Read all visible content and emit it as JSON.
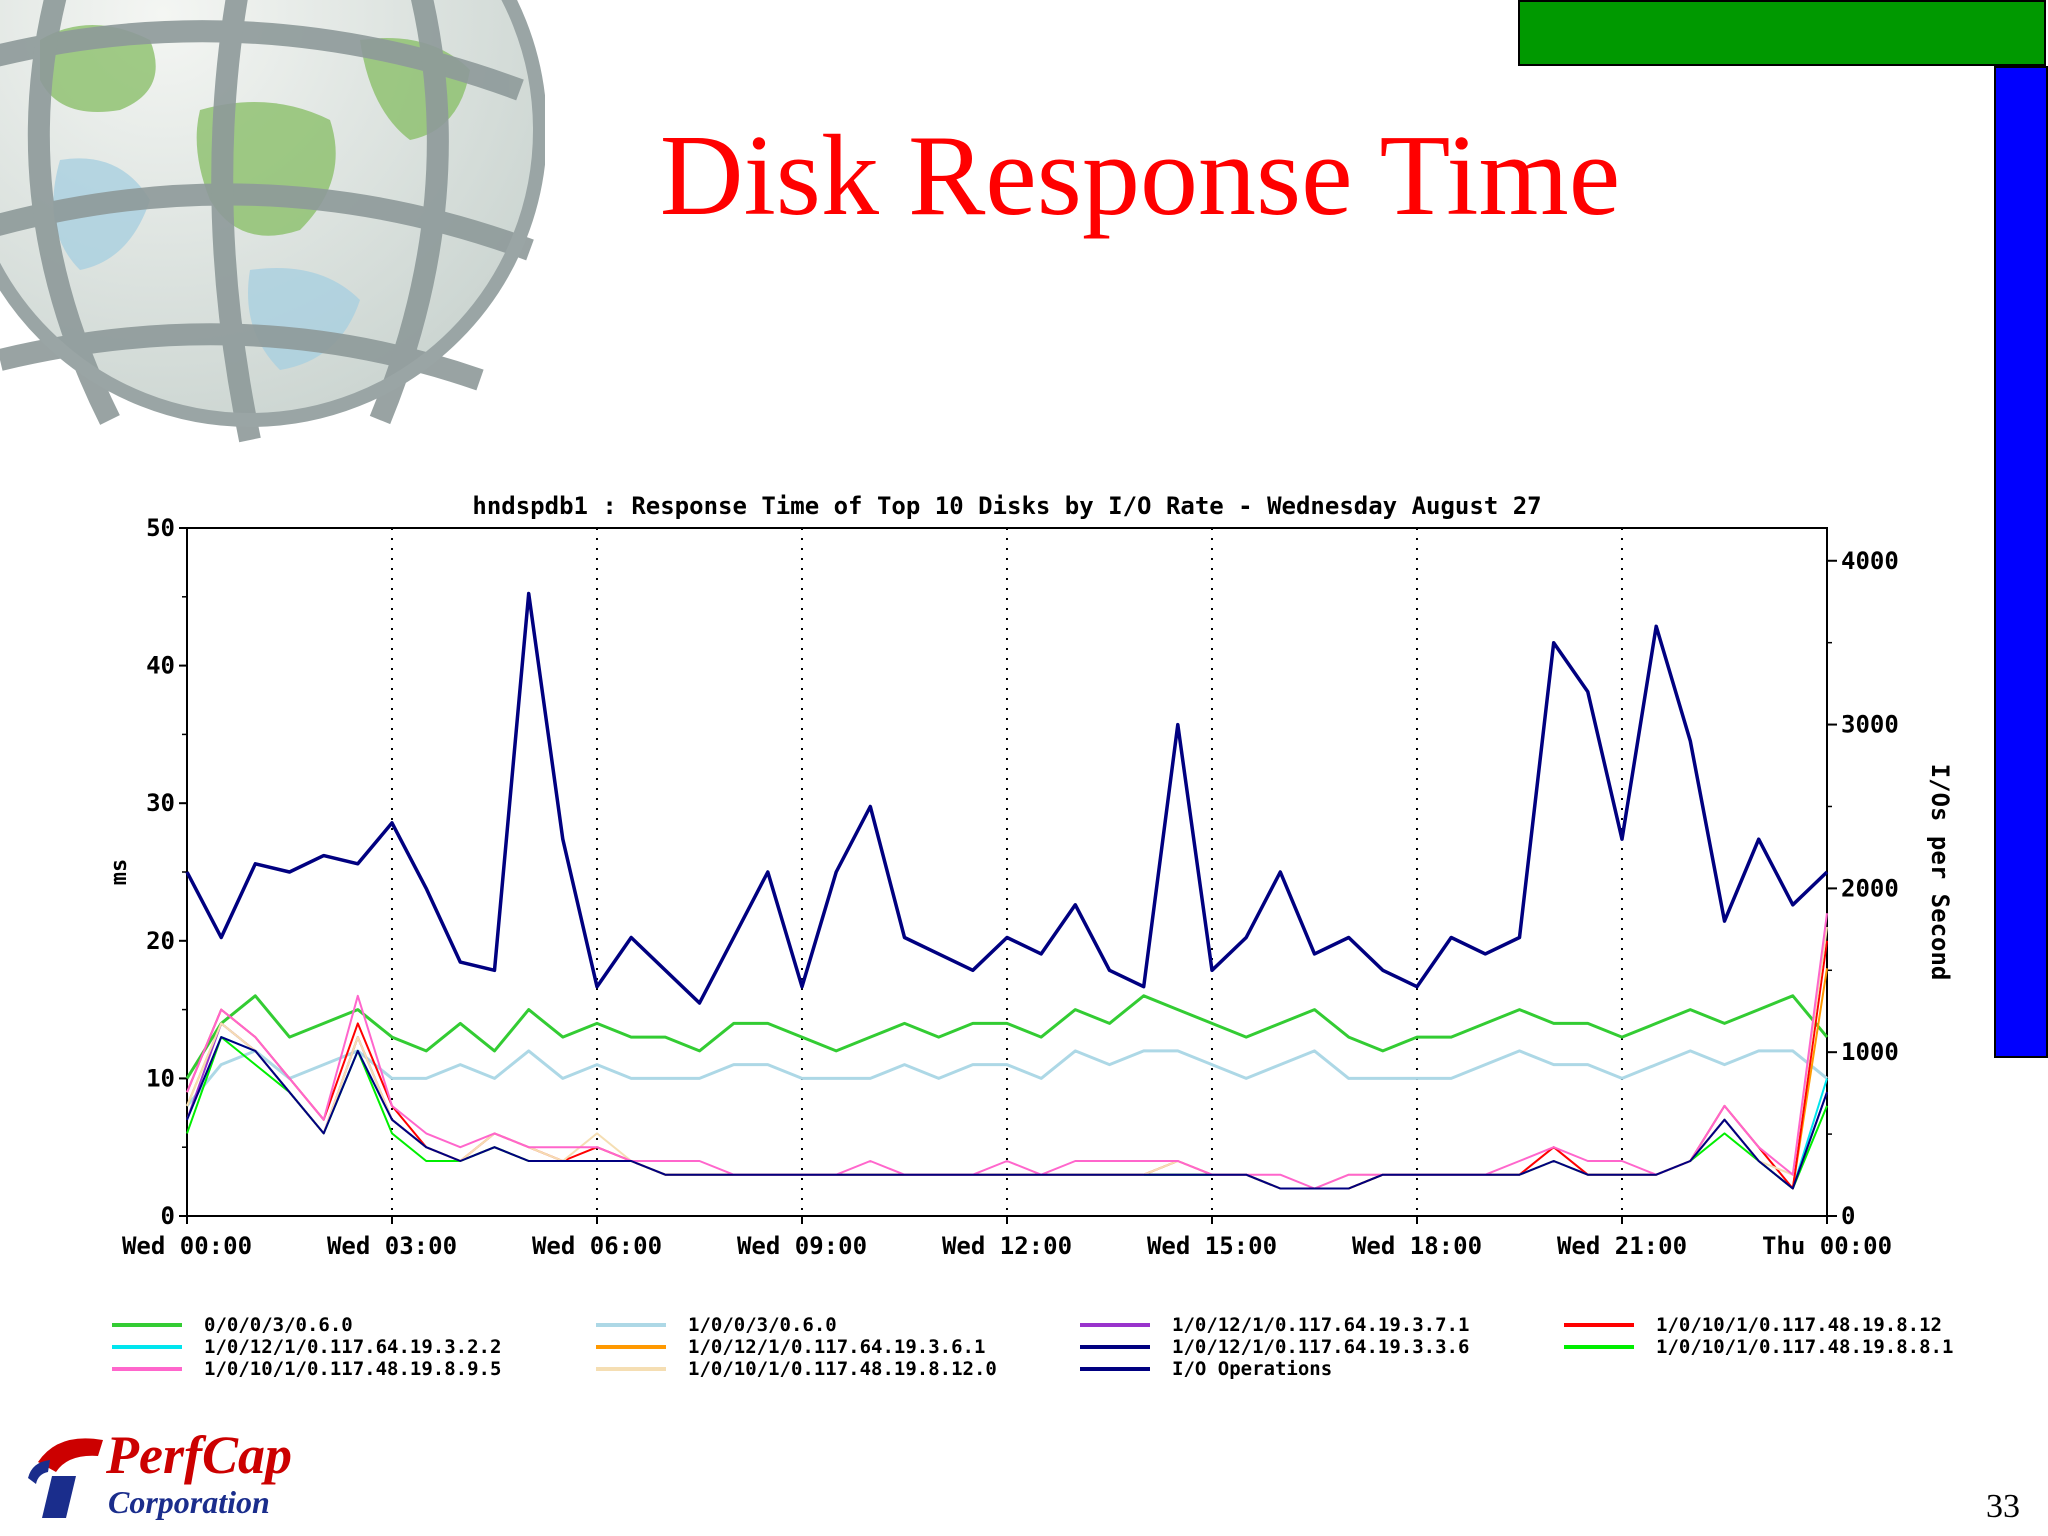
{
  "slide": {
    "title": "Disk Response Time",
    "page_number": "33",
    "logo_name": "PerfCap",
    "logo_sub": "Corporation"
  },
  "colors": {
    "title": "#ff0000",
    "green_bar": "#009900",
    "blue_bar": "#0000ff"
  },
  "chart_data": {
    "type": "line",
    "title": "hndspdb1 : Response Time of Top 10 Disks by I/O Rate - Wednesday August 27",
    "ylabel": "ms",
    "y2label": "I/Os per Second",
    "ylim": [
      0,
      50
    ],
    "y2lim": [
      0,
      4200
    ],
    "yticks": [
      "0",
      "10",
      "20",
      "30",
      "40",
      "50"
    ],
    "y2ticks": [
      "0",
      "1000",
      "2000",
      "3000",
      "4000"
    ],
    "x_labels": [
      "Wed 00:00",
      "Wed 03:00",
      "Wed 06:00",
      "Wed 09:00",
      "Wed 12:00",
      "Wed 15:00",
      "Wed 18:00",
      "Wed 21:00",
      "Thu 00:00"
    ],
    "xlim_hours": [
      0,
      24
    ],
    "grid": "vertical dotted at 3-hour ticks",
    "legend_position": "bottom",
    "x_hours": [
      0,
      0.5,
      1,
      1.5,
      2,
      2.5,
      3,
      3.5,
      4,
      4.5,
      5,
      5.5,
      6,
      6.5,
      7,
      7.5,
      8,
      8.5,
      9,
      9.5,
      10,
      10.5,
      11,
      11.5,
      12,
      12.5,
      13,
      13.5,
      14,
      14.5,
      15,
      15.5,
      16,
      16.5,
      17,
      17.5,
      18,
      18.5,
      19,
      19.5,
      20,
      20.5,
      21,
      21.5,
      22,
      22.5,
      23,
      23.5,
      24
    ],
    "series": [
      {
        "name": "0/0/0/3/0.6.0",
        "color": "#33cc33",
        "axis": "ms",
        "values": [
          10,
          14,
          16,
          13,
          14,
          15,
          13,
          12,
          14,
          12,
          15,
          13,
          14,
          13,
          13,
          12,
          14,
          14,
          13,
          12,
          13,
          14,
          13,
          14,
          14,
          13,
          15,
          14,
          16,
          15,
          14,
          13,
          14,
          15,
          13,
          12,
          13,
          13,
          14,
          15,
          14,
          14,
          13,
          14,
          15,
          14,
          15,
          16,
          13
        ]
      },
      {
        "name": "1/0/0/3/0.6.0",
        "color": "#add8e6",
        "axis": "ms",
        "values": [
          8,
          11,
          12,
          10,
          11,
          12,
          10,
          10,
          11,
          10,
          12,
          10,
          11,
          10,
          10,
          10,
          11,
          11,
          10,
          10,
          10,
          11,
          10,
          11,
          11,
          10,
          12,
          11,
          12,
          12,
          11,
          10,
          11,
          12,
          10,
          10,
          10,
          10,
          11,
          12,
          11,
          11,
          10,
          11,
          12,
          11,
          12,
          12,
          10
        ]
      },
      {
        "name": "1/0/12/1/0.117.64.19.3.7.1",
        "color": "#9933cc",
        "axis": "ms",
        "values": [
          7,
          14,
          12,
          9,
          6,
          13,
          7,
          5,
          4,
          5,
          4,
          4,
          4,
          4,
          3,
          3,
          3,
          3,
          3,
          3,
          3,
          3,
          3,
          3,
          3,
          3,
          3,
          3,
          3,
          3,
          3,
          3,
          2,
          2,
          2,
          3,
          3,
          3,
          3,
          3,
          4,
          3,
          3,
          3,
          4,
          7,
          4,
          2,
          9
        ]
      },
      {
        "name": "1/0/10/1/0.117.48.19.8.12",
        "color": "#ff0000",
        "axis": "ms",
        "values": [
          9,
          15,
          13,
          10,
          7,
          14,
          8,
          5,
          4,
          6,
          5,
          4,
          5,
          4,
          3,
          3,
          3,
          3,
          3,
          3,
          3,
          3,
          3,
          3,
          3,
          3,
          3,
          3,
          3,
          4,
          3,
          3,
          2,
          2,
          2,
          3,
          3,
          3,
          3,
          3,
          5,
          3,
          3,
          3,
          4,
          8,
          5,
          2,
          20
        ]
      },
      {
        "name": "1/0/12/1/0.117.64.19.3.2.2",
        "color": "#00e5ee",
        "axis": "ms",
        "values": [
          7,
          13,
          12,
          9,
          6,
          12,
          7,
          5,
          4,
          5,
          4,
          4,
          4,
          4,
          3,
          3,
          3,
          3,
          3,
          3,
          3,
          3,
          3,
          3,
          3,
          3,
          3,
          3,
          3,
          3,
          3,
          3,
          2,
          2,
          2,
          3,
          3,
          3,
          3,
          3,
          4,
          3,
          3,
          3,
          4,
          7,
          4,
          2,
          10
        ]
      },
      {
        "name": "1/0/12/1/0.117.64.19.3.6.1",
        "color": "#ff9900",
        "axis": "ms",
        "values": [
          8,
          14,
          12,
          9,
          6,
          13,
          7,
          5,
          4,
          5,
          4,
          4,
          4,
          4,
          3,
          3,
          3,
          3,
          3,
          3,
          3,
          3,
          3,
          3,
          3,
          3,
          3,
          3,
          3,
          3,
          3,
          3,
          2,
          2,
          2,
          3,
          3,
          3,
          3,
          3,
          4,
          3,
          3,
          3,
          4,
          7,
          4,
          2,
          18
        ]
      },
      {
        "name": "1/0/12/1/0.117.64.19.3.3.6",
        "color": "#000080",
        "axis": "ms",
        "values": [
          7,
          13,
          12,
          9,
          6,
          12,
          7,
          5,
          4,
          5,
          4,
          4,
          4,
          4,
          3,
          3,
          3,
          3,
          3,
          3,
          3,
          3,
          3,
          3,
          3,
          3,
          3,
          3,
          3,
          3,
          3,
          3,
          2,
          2,
          2,
          3,
          3,
          3,
          3,
          3,
          4,
          3,
          3,
          3,
          4,
          7,
          4,
          2,
          9
        ]
      },
      {
        "name": "1/0/10/1/0.117.48.19.8.8.1",
        "color": "#00ee00",
        "axis": "ms",
        "values": [
          6,
          13,
          11,
          9,
          6,
          12,
          6,
          4,
          4,
          5,
          4,
          4,
          4,
          4,
          3,
          3,
          3,
          3,
          3,
          3,
          3,
          3,
          3,
          3,
          3,
          3,
          3,
          3,
          3,
          3,
          3,
          3,
          2,
          2,
          2,
          3,
          3,
          3,
          3,
          3,
          4,
          3,
          3,
          3,
          4,
          6,
          4,
          2,
          8
        ]
      },
      {
        "name": "1/0/10/1/0.117.48.19.8.9.5",
        "color": "#ff66cc",
        "axis": "ms",
        "values": [
          9,
          15,
          13,
          10,
          7,
          16,
          8,
          6,
          5,
          6,
          5,
          5,
          5,
          4,
          4,
          4,
          3,
          3,
          3,
          3,
          4,
          3,
          3,
          3,
          4,
          3,
          4,
          4,
          4,
          4,
          3,
          3,
          3,
          2,
          3,
          3,
          3,
          3,
          3,
          4,
          5,
          4,
          4,
          3,
          4,
          8,
          5,
          3,
          22
        ]
      },
      {
        "name": "1/0/10/1/0.117.48.19.8.12.0",
        "color": "#f5deb3",
        "axis": "ms",
        "values": [
          8,
          14,
          12,
          9,
          6,
          13,
          7,
          5,
          4,
          6,
          5,
          4,
          6,
          4,
          3,
          3,
          3,
          3,
          3,
          3,
          3,
          3,
          3,
          3,
          3,
          3,
          3,
          3,
          3,
          4,
          3,
          3,
          2,
          2,
          3,
          3,
          3,
          3,
          3,
          3,
          4,
          3,
          3,
          3,
          4,
          7,
          4,
          3,
          21
        ]
      },
      {
        "name": "I/O Operations",
        "color": "#000080",
        "axis": "iops",
        "values": [
          2100,
          1700,
          2150,
          2100,
          2200,
          2150,
          2400,
          2000,
          1550,
          1500,
          3800,
          2300,
          1400,
          1700,
          1500,
          1300,
          1700,
          2100,
          1400,
          2100,
          2500,
          1700,
          1600,
          1500,
          1700,
          1600,
          1900,
          1500,
          1400,
          3000,
          1500,
          1700,
          2100,
          1600,
          1700,
          1500,
          1400,
          1700,
          1600,
          1700,
          3500,
          3200,
          2300,
          3600,
          2900,
          1800,
          2300,
          1900,
          2100
        ]
      }
    ]
  }
}
